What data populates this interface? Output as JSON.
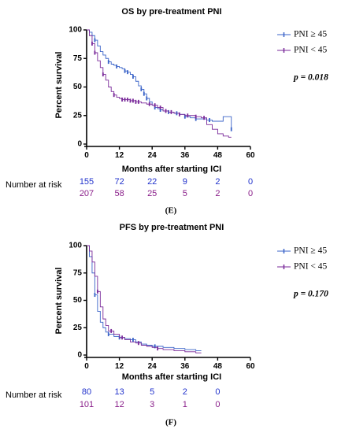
{
  "colors": {
    "blue": "#3a63c8",
    "purple": "#7a2a9a",
    "risk_blue": "#2233cc",
    "risk_purple": "#8a1f8a"
  },
  "chart_data": [
    {
      "type": "line",
      "title": "OS by pre-treatment PNI",
      "xlabel": "Months after starting ICI",
      "ylabel": "Percent survival",
      "xlim": [
        0,
        60
      ],
      "ylim": [
        0,
        100
      ],
      "xticks": [
        "0",
        "12",
        "24",
        "36",
        "48",
        "60"
      ],
      "yticks": [
        "0",
        "25",
        "50",
        "75",
        "100"
      ],
      "legend_position": "top-right",
      "p_value": "p = 0.018",
      "series": [
        {
          "name": "PNI ≥ 45",
          "color_key": "blue",
          "x": [
            0,
            1,
            2,
            3,
            4,
            5,
            6,
            7,
            8,
            9,
            10,
            11,
            12,
            13,
            14,
            15,
            16,
            17,
            18,
            19,
            20,
            21,
            22,
            23,
            24,
            25,
            26,
            27,
            28,
            30,
            32,
            34,
            36,
            38,
            40,
            42,
            44,
            46,
            48,
            50,
            52,
            53
          ],
          "y": [
            100,
            98,
            95,
            91,
            86,
            81,
            78,
            75,
            72,
            70,
            69,
            68,
            67,
            66,
            64,
            63,
            61,
            59,
            55,
            51,
            48,
            44,
            40,
            37,
            34,
            32,
            31,
            30,
            29,
            28,
            27,
            26,
            24,
            23,
            22,
            22,
            21,
            20,
            20,
            24,
            24,
            13
          ],
          "censor_x": [
            3,
            8,
            11,
            14,
            15,
            17,
            20,
            21,
            22,
            25,
            27,
            30,
            33,
            36,
            40,
            45,
            53
          ]
        },
        {
          "name": "PNI < 45",
          "color_key": "purple",
          "x": [
            0,
            1,
            2,
            3,
            4,
            5,
            6,
            7,
            8,
            9,
            10,
            11,
            12,
            13,
            14,
            15,
            16,
            18,
            20,
            22,
            24,
            26,
            28,
            30,
            32,
            34,
            36,
            38,
            40,
            42,
            44,
            46,
            48,
            50,
            52,
            53
          ],
          "y": [
            100,
            95,
            88,
            80,
            73,
            67,
            61,
            56,
            50,
            46,
            43,
            41,
            40,
            39,
            39,
            39,
            38,
            37,
            36,
            35,
            34,
            32,
            29,
            28,
            27,
            26,
            25,
            25,
            24,
            23,
            17,
            13,
            9,
            7,
            6,
            6
          ],
          "censor_x": [
            2,
            3,
            6,
            10,
            13,
            14,
            15,
            16,
            17,
            18,
            19,
            23,
            25,
            27,
            29,
            31,
            34,
            37,
            40,
            43
          ]
        }
      ],
      "risk_table": {
        "title": "Number at risk",
        "rows": [
          {
            "color_key": "risk_blue",
            "values": [
              "155",
              "72",
              "22",
              "9",
              "2",
              "0"
            ]
          },
          {
            "color_key": "risk_purple",
            "values": [
              "207",
              "58",
              "25",
              "5",
              "2",
              "0"
            ]
          }
        ]
      },
      "caption": "(E)"
    },
    {
      "type": "line",
      "title": "PFS by pre-treatment PNI",
      "xlabel": "Months after starting ICI",
      "ylabel": "Percent survival",
      "xlim": [
        0,
        60
      ],
      "ylim": [
        0,
        100
      ],
      "xticks": [
        "0",
        "12",
        "24",
        "36",
        "48",
        "60"
      ],
      "yticks": [
        "0",
        "25",
        "50",
        "75",
        "100"
      ],
      "legend_position": "top-right",
      "p_value": "p = 0.170",
      "series": [
        {
          "name": "PNI ≥ 45",
          "color_key": "blue",
          "x": [
            0,
            1,
            2,
            3,
            4,
            5,
            6,
            7,
            8,
            10,
            12,
            14,
            16,
            18,
            20,
            22,
            24,
            28,
            32,
            36,
            40,
            42
          ],
          "y": [
            100,
            90,
            75,
            55,
            40,
            30,
            25,
            21,
            19,
            17,
            16,
            15,
            14,
            12,
            10,
            9,
            8,
            7,
            6,
            5,
            4,
            4
          ],
          "censor_x": [
            3,
            8,
            12,
            17,
            25
          ]
        },
        {
          "name": "PNI < 45",
          "color_key": "purple",
          "x": [
            0,
            1,
            2,
            3,
            4,
            5,
            6,
            7,
            8,
            10,
            12,
            14,
            16,
            18,
            20,
            22,
            24,
            26,
            28,
            30,
            32,
            36,
            40,
            42
          ],
          "y": [
            100,
            95,
            85,
            72,
            58,
            44,
            33,
            27,
            22,
            19,
            16,
            14,
            12,
            11,
            9,
            8,
            7,
            6,
            5,
            5,
            4,
            3,
            2,
            2
          ],
          "censor_x": [
            4,
            9,
            13,
            19,
            26
          ]
        }
      ],
      "risk_table": {
        "title": "Number at risk",
        "rows": [
          {
            "color_key": "risk_blue",
            "values": [
              "80",
              "13",
              "5",
              "2",
              "0"
            ]
          },
          {
            "color_key": "risk_purple",
            "values": [
              "101",
              "12",
              "3",
              "1",
              "0"
            ]
          }
        ]
      },
      "caption": "(F)"
    }
  ]
}
